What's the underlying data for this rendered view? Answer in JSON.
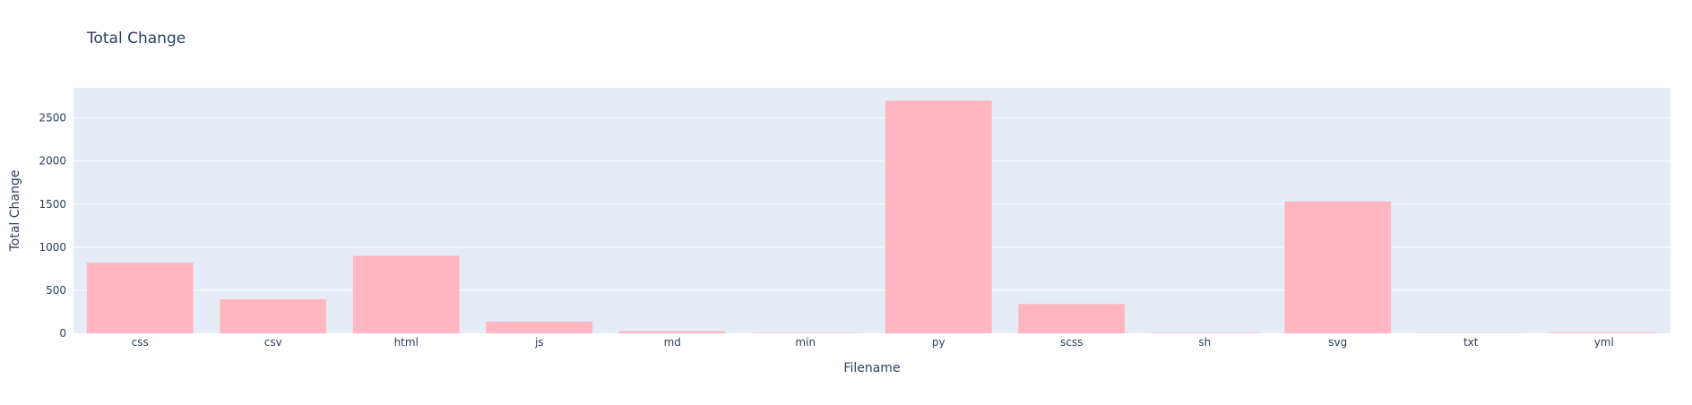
{
  "chart_data": {
    "type": "bar",
    "title": "Total Change",
    "xlabel": "Filename",
    "ylabel": "Total Change",
    "categories": [
      "css",
      "csv",
      "html",
      "js",
      "md",
      "min",
      "py",
      "scss",
      "sh",
      "svg",
      "txt",
      "yml"
    ],
    "values": [
      820,
      395,
      900,
      135,
      25,
      5,
      2700,
      340,
      8,
      1530,
      2,
      10
    ],
    "ylim": [
      0,
      2850
    ],
    "yticks": [
      0,
      500,
      1000,
      1500,
      2000,
      2500
    ],
    "grid": true,
    "colors": {
      "bar": "#ffb6c1",
      "plot_bg": "#e5ecf6",
      "grid": "#ffffff",
      "text": "#2a3f5f"
    }
  }
}
